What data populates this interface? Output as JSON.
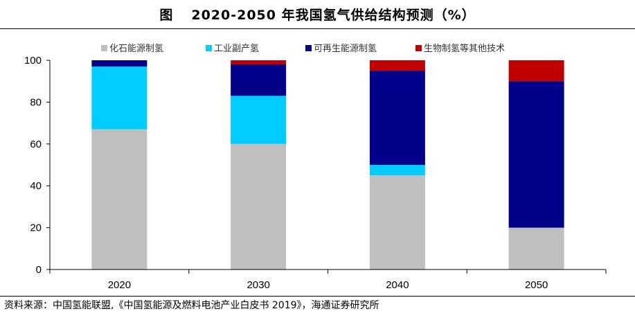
{
  "header": {
    "figure_label": "图",
    "title": "2020-2050 年我国氢气供给结构预测（%）"
  },
  "footer": {
    "source": "资料来源：中国氢能联盟,《中国氢能源及燃料电池产业白皮书 2019》，海通证券研究所"
  },
  "colors": {
    "fossil": "#bfbfbf",
    "industrial": "#00ccff",
    "renewable": "#00008b",
    "biomass": "#c00000"
  },
  "chart_data": {
    "type": "bar",
    "stacked": true,
    "categories": [
      "2020",
      "2030",
      "2040",
      "2050"
    ],
    "series": [
      {
        "name": "化石能源制氢",
        "color": "#bfbfbf",
        "values": [
          67,
          60,
          45,
          20
        ]
      },
      {
        "name": "工业副产氢",
        "color": "#00ccff",
        "values": [
          30,
          23,
          5,
          0
        ]
      },
      {
        "name": "可再生能源制氢",
        "color": "#00008b",
        "values": [
          3,
          15,
          45,
          70
        ]
      },
      {
        "name": "生物制氢等其他技术",
        "color": "#c00000",
        "values": [
          0,
          2,
          5,
          10
        ]
      }
    ],
    "ylim": [
      0,
      100
    ],
    "yticks": [
      0,
      20,
      40,
      60,
      80,
      100
    ],
    "xlabel": "",
    "ylabel": "",
    "grid": false,
    "legend_position": "top"
  }
}
